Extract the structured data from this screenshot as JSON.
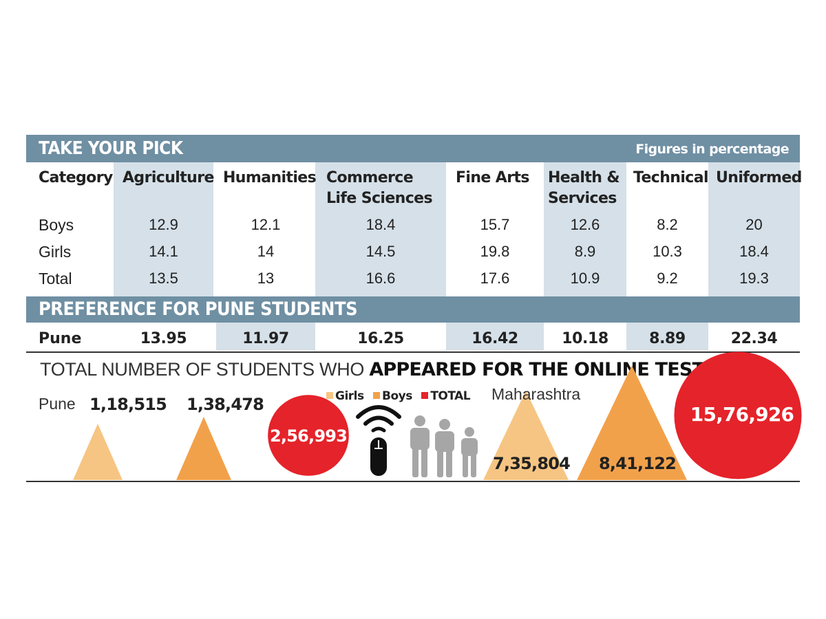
{
  "figures_note": "Figures in percentage",
  "colors": {
    "bar": "#6f8fa3",
    "shade": "#d5e0e8",
    "girls": "#f6c583",
    "boys": "#f2a14b",
    "total": "#e5232a",
    "icon_gray": "#a6a6a6"
  },
  "chart_data": [
    {
      "type": "table",
      "title": "TAKE YOUR PICK",
      "subtitle": "Figures in percentage",
      "header_first": "Category",
      "columns": [
        {
          "name1": "Agriculture",
          "name2": ""
        },
        {
          "name1": "Humanities",
          "name2": ""
        },
        {
          "name1": "Commerce",
          "name2": "Life Sciences"
        },
        {
          "name1": "Fine Arts",
          "name2": ""
        },
        {
          "name1": "Health &",
          "name2": "Services"
        },
        {
          "name1": "Technical",
          "name2": ""
        },
        {
          "name1": "Uniformed",
          "name2": ""
        }
      ],
      "rows": [
        {
          "label": "Boys",
          "values": [
            "12.9",
            "12.1",
            "18.4",
            "15.7",
            "12.6",
            "8.2",
            "20"
          ]
        },
        {
          "label": "Girls",
          "values": [
            "14.1",
            "14",
            "14.5",
            "19.8",
            "8.9",
            "10.3",
            "18.4"
          ]
        },
        {
          "label": "Total",
          "values": [
            "13.5",
            "13",
            "16.6",
            "17.6",
            "10.9",
            "9.2",
            "19.3"
          ]
        }
      ]
    },
    {
      "type": "table",
      "title": "PREFERENCE FOR PUNE STUDENTS",
      "rows": [
        {
          "label": "Pune",
          "values": [
            "13.95",
            "11.97",
            "16.25",
            "16.42",
            "10.18",
            "8.89",
            "22.34"
          ]
        }
      ]
    },
    {
      "type": "bar",
      "title_plain": "TOTAL NUMBER OF STUDENTS WHO ",
      "title_bold": "APPEARED FOR THE ONLINE TEST",
      "legend": [
        "Girls",
        "Boys",
        "TOTAL"
      ],
      "pune": {
        "label": "Pune",
        "girls": 118515,
        "boys": 138478,
        "total": 256993,
        "girls_label": "1,18,515",
        "boys_label": "1,38,478",
        "total_label": "2,56,993"
      },
      "maharashtra": {
        "label": "Maharashtra",
        "girls": 735804,
        "boys": 841122,
        "total": 1576926,
        "girls_label": "7,35,804",
        "boys_label": "8,41,122",
        "total_label": "15,76,926"
      }
    }
  ]
}
